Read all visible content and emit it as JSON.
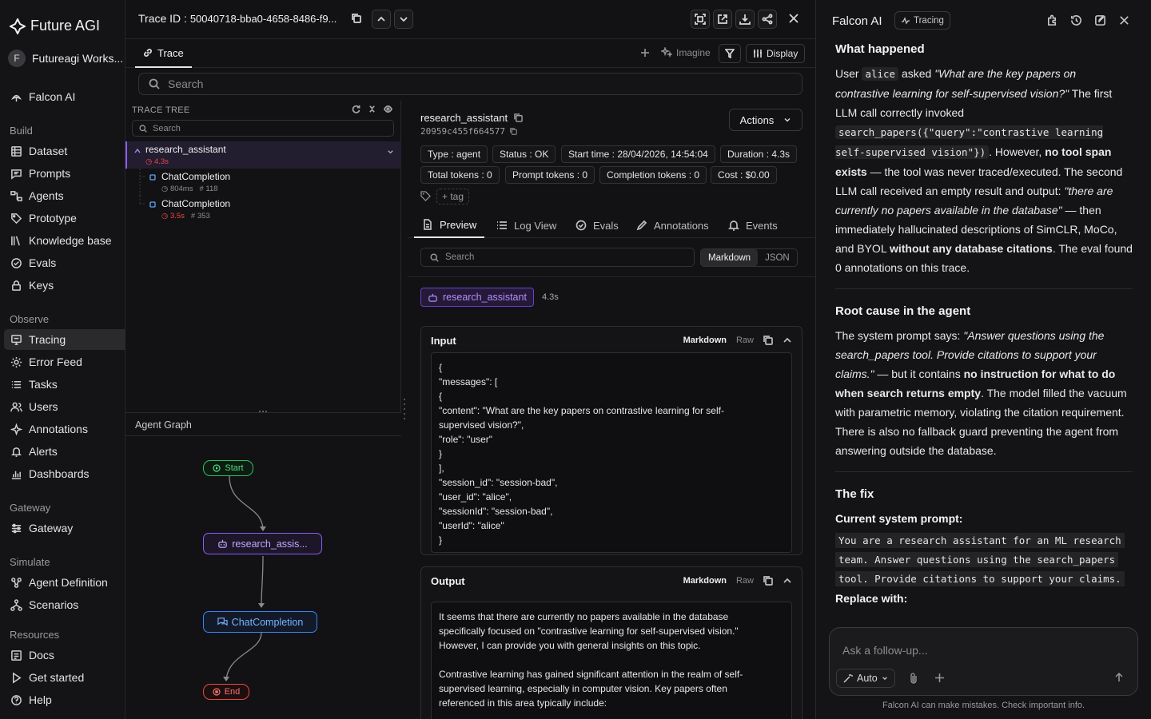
{
  "sidebar": {
    "brand": "Future AGI",
    "workspace_initial": "F",
    "workspace_name": "Futureagi Works...",
    "falcon": "Falcon AI",
    "sections": {
      "build": "Build",
      "observe": "Observe",
      "gateway": "Gateway",
      "simulate": "Simulate",
      "resources": "Resources"
    },
    "build_items": [
      "Dataset",
      "Prompts",
      "Agents",
      "Prototype",
      "Knowledge base",
      "Evals",
      "Keys"
    ],
    "observe_items": [
      "Tracing",
      "Error Feed",
      "Tasks",
      "Users",
      "Annotations",
      "Alerts",
      "Dashboards"
    ],
    "gateway_items": [
      "Gateway"
    ],
    "simulate_items": [
      "Agent Definition",
      "Scenarios"
    ],
    "resource_items": [
      "Docs",
      "Get started",
      "Help"
    ],
    "active": "Tracing"
  },
  "trace": {
    "id_label": "Trace ID :",
    "id_value": "50040718-bba0-4658-8486-f9...",
    "tab": "Trace",
    "imagine": "Imagine",
    "display": "Display",
    "search_placeholder": "Search"
  },
  "tree": {
    "title": "TRACE TREE",
    "search_placeholder": "Search",
    "rows": [
      {
        "name": "research_assistant",
        "time": "4.3s",
        "tokens": ""
      },
      {
        "name": "ChatCompletion",
        "time": "804ms",
        "tokens": "118"
      },
      {
        "name": "ChatCompletion",
        "time": "3.5s",
        "tokens": "353"
      }
    ],
    "token_prefix": "#"
  },
  "graph": {
    "title": "Agent Graph",
    "start": "Start",
    "agent": "research_assis...",
    "llm": "ChatCompletion",
    "end": "End"
  },
  "detail": {
    "span_name": "research_assistant",
    "span_id": "20959c455f664577",
    "actions": "Actions",
    "chips": {
      "type": "Type : agent",
      "status": "Status : OK",
      "start": "Start time : 28/04/2026, 14:54:04",
      "duration": "Duration : 4.3s",
      "total_tokens": "Total tokens : 0",
      "prompt_tokens": "Prompt tokens : 0",
      "completion_tokens": "Completion tokens : 0",
      "cost": "Cost : $0.00"
    },
    "tag": "+ tag",
    "tabs": [
      "Preview",
      "Log View",
      "Evals",
      "Annotations",
      "Events"
    ],
    "search_placeholder": "Search",
    "format_markdown": "Markdown",
    "format_json": "JSON",
    "badge": "research_assistant",
    "badge_duration": "4.3s",
    "input": {
      "title": "Input",
      "markdown": "Markdown",
      "raw": "Raw",
      "lines": [
        "{",
        "\"messages\": [",
        "{",
        "\"content\": \"What are the key papers on contrastive learning for self-",
        "supervised vision?\",",
        "\"role\": \"user\"",
        "}",
        "],",
        "\"session_id\": \"session-bad\",",
        "\"user_id\": \"alice\",",
        "\"sessionId\": \"session-bad\",",
        "\"userId\": \"alice\"",
        "}"
      ]
    },
    "output": {
      "title": "Output",
      "markdown": "Markdown",
      "raw": "Raw",
      "lines": [
        "It seems that there are currently no papers available in the database",
        "specifically focused on \"contrastive learning for self-supervised vision.\"",
        "However, I can provide you with general insights on this topic.",
        "",
        "Contrastive learning has gained significant attention in the realm of self-",
        "supervised learning, especially in computer vision. Key papers often",
        "referenced in this area typically include:"
      ]
    }
  },
  "falcon": {
    "title": "Falcon AI",
    "badge": "Tracing",
    "what_happened": {
      "heading": "What happened",
      "user_word": "User",
      "user_code": "alice",
      "asked": "asked",
      "question": "\"What are the key papers on contrastive learning for self-supervised vision?\"",
      "t1": "The first LLM call correctly invoked",
      "call_code": "search_papers({\"query\":\"contrastive learning self-supervised vision\"})",
      "t2": ". However,",
      "bold1": "no tool span exists",
      "t3": "— the tool was never traced/executed. The second LLM call received an empty result and output:",
      "quote2": "\"there are currently no papers available in the database\"",
      "t4": "— then immediately hallucinated descriptions of SimCLR, MoCo, and BYOL",
      "bold2": "without any database citations",
      "t5": ". The eval found 0 annotations on this trace."
    },
    "root_cause": {
      "heading": "Root cause in the agent",
      "t1": "The system prompt says:",
      "quote": "\"Answer questions using the search_papers tool. Provide citations to support your claims.\"",
      "t2": "— but it contains",
      "bold": "no instruction for what to do when search returns empty",
      "t3": ". The model filled the vacuum with parametric memory, violating the citation requirement. There is also no fallback guard preventing the agent from answering outside the database."
    },
    "fix": {
      "heading": "The fix",
      "current_label": "Current system prompt:",
      "prompt_lines": [
        "You are a research assistant for an ML research",
        "team. Answer questions using the search_papers",
        "tool. Provide citations to support your claims."
      ],
      "replace_label": "Replace with:"
    },
    "input_placeholder": "Ask a follow-up...",
    "auto": "Auto",
    "disclaimer": "Falcon AI can make mistakes. Check important info."
  }
}
